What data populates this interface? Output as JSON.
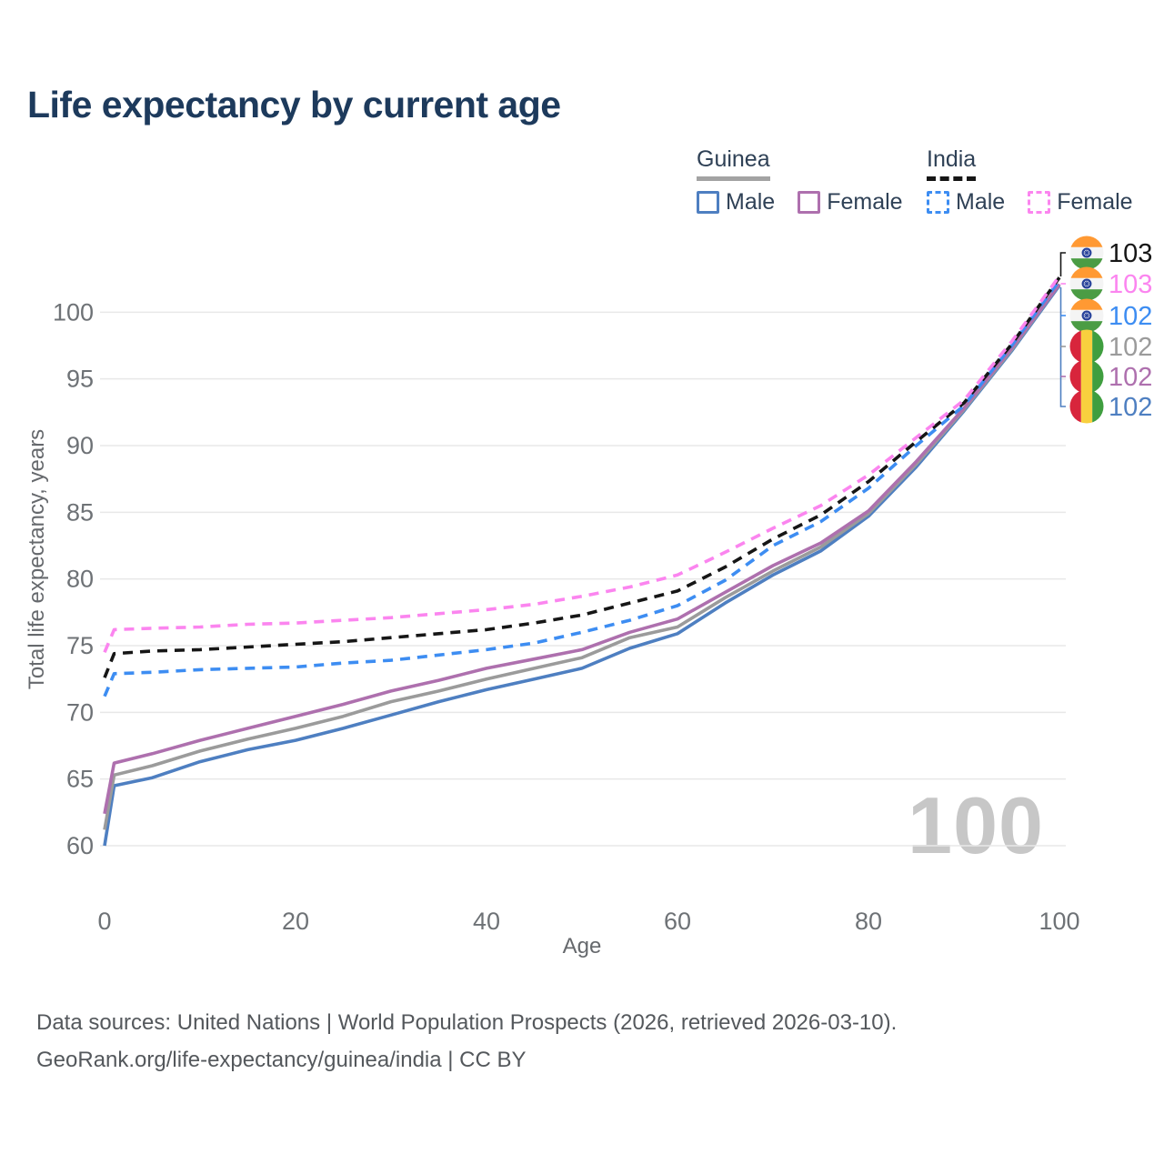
{
  "title": "Life expectancy by current age",
  "watermark": "100",
  "legend": {
    "groups": [
      {
        "country": "Guinea",
        "style": "solid",
        "underline_color": "#a3a3a3",
        "items": [
          {
            "label": "Male",
            "color": "#4e7fc1"
          },
          {
            "label": "Female",
            "color": "#ae70ae"
          }
        ]
      },
      {
        "country": "India",
        "style": "dashed",
        "underline_color": "#161616",
        "items": [
          {
            "label": "Male",
            "color": "#3d8df2"
          },
          {
            "label": "Female",
            "color": "#fb85ef"
          }
        ]
      }
    ]
  },
  "axes": {
    "y_title": "Total life expectancy, years",
    "x_title": "Age",
    "y_ticks": [
      60,
      65,
      70,
      75,
      80,
      85,
      90,
      95,
      100
    ],
    "x_ticks": [
      0,
      20,
      40,
      60,
      80,
      100
    ]
  },
  "end_labels": [
    {
      "value": "103",
      "flag": "india",
      "color": "#161616"
    },
    {
      "value": "103",
      "flag": "india",
      "color": "#fb85ef"
    },
    {
      "value": "102",
      "flag": "india",
      "color": "#3d8df2"
    },
    {
      "value": "102",
      "flag": "guinea",
      "color": "#9b9b9b"
    },
    {
      "value": "102",
      "flag": "guinea",
      "color": "#ae70ae"
    },
    {
      "value": "102",
      "flag": "guinea",
      "color": "#4e7fc1"
    }
  ],
  "footer": {
    "line1": "Data sources: United Nations | World Population Prospects (2026, retrieved 2026-03-10).",
    "line2": "GeoRank.org/life-expectancy/guinea/india | CC BY"
  },
  "chart_data": {
    "type": "line",
    "title": "Life expectancy by current age",
    "xlabel": "Age",
    "ylabel": "Total life expectancy, years",
    "xlim": [
      0,
      100
    ],
    "ylim": [
      60,
      103
    ],
    "grid": true,
    "legend_position": "top-right",
    "x": [
      0,
      1,
      5,
      10,
      15,
      20,
      25,
      30,
      35,
      40,
      45,
      50,
      55,
      60,
      65,
      70,
      75,
      80,
      85,
      90,
      95,
      100
    ],
    "series": [
      {
        "name": "Guinea Male",
        "country": "Guinea",
        "sex": "Male",
        "color": "#4e7fc1",
        "dash": false,
        "values": [
          60.0,
          64.5,
          65.1,
          66.3,
          67.2,
          67.9,
          68.8,
          69.8,
          70.8,
          71.7,
          72.5,
          73.3,
          74.8,
          75.9,
          78.2,
          80.3,
          82.1,
          84.7,
          88.4,
          92.6,
          97.1,
          102.0
        ]
      },
      {
        "name": "Guinea Total",
        "country": "Guinea",
        "sex": "Total",
        "color": "#9b9b9b",
        "dash": false,
        "values": [
          61.2,
          65.3,
          66.0,
          67.1,
          68.0,
          68.8,
          69.7,
          70.8,
          71.6,
          72.5,
          73.3,
          74.1,
          75.6,
          76.4,
          78.6,
          80.6,
          82.4,
          84.9,
          88.6,
          92.7,
          97.2,
          102.1
        ]
      },
      {
        "name": "Guinea Female",
        "country": "Guinea",
        "sex": "Female",
        "color": "#ae70ae",
        "dash": false,
        "values": [
          62.4,
          66.2,
          66.9,
          67.9,
          68.8,
          69.7,
          70.6,
          71.6,
          72.4,
          73.3,
          74.0,
          74.7,
          76.0,
          77.0,
          79.0,
          81.0,
          82.7,
          85.1,
          88.8,
          92.8,
          97.3,
          102.1
        ]
      },
      {
        "name": "India Male",
        "country": "India",
        "sex": "Male",
        "color": "#3d8df2",
        "dash": true,
        "values": [
          71.2,
          72.9,
          73.0,
          73.2,
          73.3,
          73.4,
          73.7,
          73.9,
          74.3,
          74.7,
          75.2,
          76.0,
          76.9,
          78.0,
          79.9,
          82.5,
          84.3,
          86.8,
          90.0,
          93.0,
          97.5,
          102.4
        ]
      },
      {
        "name": "India Total",
        "country": "India",
        "sex": "Total",
        "color": "#161616",
        "dash": true,
        "values": [
          72.6,
          74.4,
          74.6,
          74.7,
          74.9,
          75.1,
          75.3,
          75.6,
          75.9,
          76.2,
          76.7,
          77.3,
          78.2,
          79.1,
          80.9,
          83.0,
          84.8,
          87.3,
          90.3,
          93.2,
          97.6,
          102.6
        ]
      },
      {
        "name": "India Female",
        "country": "India",
        "sex": "Female",
        "color": "#fb85ef",
        "dash": true,
        "values": [
          74.5,
          76.2,
          76.3,
          76.4,
          76.6,
          76.7,
          76.9,
          77.1,
          77.4,
          77.7,
          78.1,
          78.7,
          79.4,
          80.3,
          82.0,
          83.8,
          85.5,
          87.8,
          90.6,
          93.4,
          97.8,
          102.7
        ]
      }
    ]
  }
}
